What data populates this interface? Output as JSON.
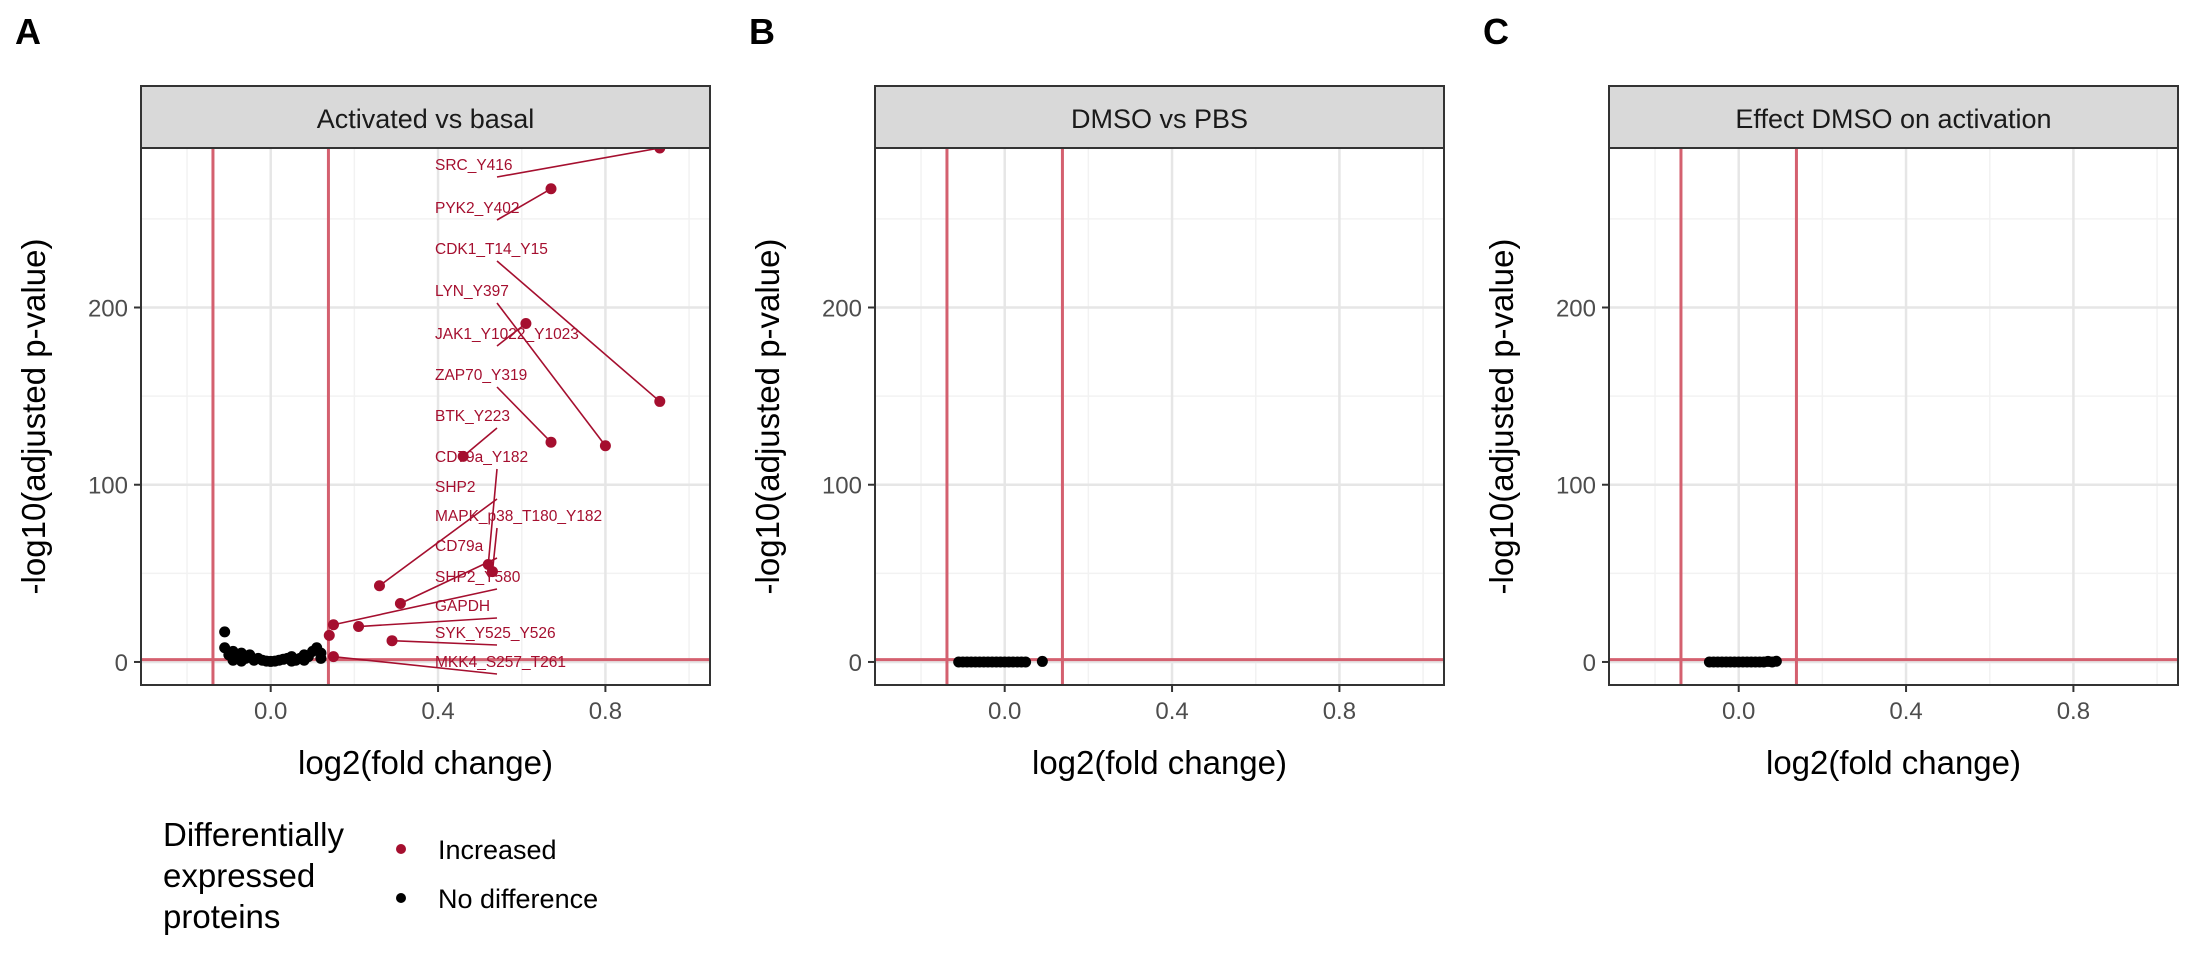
{
  "colors": {
    "increased": "#a50f2f",
    "no_difference": "#000000",
    "threshold": "#d4606f",
    "grid_major": "#e6e6e6",
    "grid_minor": "#f2f2f2",
    "strip_fill": "#d9d9d9",
    "panel_border": "#333333"
  },
  "legend": {
    "title_lines": [
      "Differentially",
      "expressed",
      "proteins"
    ],
    "items": [
      {
        "label": "Increased",
        "color": "#a50f2f"
      },
      {
        "label": "No difference",
        "color": "#000000"
      }
    ]
  },
  "chart_data": [
    {
      "type": "scatter",
      "panel_letter": "A",
      "title": "Activated vs basal",
      "xlabel": "log2(fold change)",
      "ylabel": "-log10(adjusted p-value)",
      "xlim": [
        -0.31,
        1.05
      ],
      "ylim": [
        -13,
        290
      ],
      "xticks": [
        0.0,
        0.4,
        0.8
      ],
      "xtick_labels": [
        "0.0",
        "0.4",
        "0.8"
      ],
      "yticks": [
        0,
        100,
        200
      ],
      "ytick_labels": [
        "0",
        "100",
        "200"
      ],
      "thresholds": {
        "x": [
          -0.138,
          0.138
        ],
        "y": 1.3
      },
      "grid": true,
      "series": [
        {
          "name": "Increased",
          "points": [
            {
              "x": 0.93,
              "y": 290,
              "label": "SRC_Y416"
            },
            {
              "x": 0.67,
              "y": 267,
              "label": "PYK2_Y402"
            },
            {
              "x": 0.93,
              "y": 147,
              "label": "CDK1_T14_Y15"
            },
            {
              "x": 0.8,
              "y": 122,
              "label": "LYN_Y397"
            },
            {
              "x": 0.61,
              "y": 191,
              "label": "JAK1_Y1022_Y1023"
            },
            {
              "x": 0.67,
              "y": 124,
              "label": "ZAP70_Y319"
            },
            {
              "x": 0.46,
              "y": 116,
              "label": "BTK_Y223"
            },
            {
              "x": 0.52,
              "y": 55,
              "label": "CD79a_Y182"
            },
            {
              "x": 0.26,
              "y": 43,
              "label": "SHP2"
            },
            {
              "x": 0.53,
              "y": 51,
              "label": "MAPK_p38_T180_Y182"
            },
            {
              "x": 0.31,
              "y": 33,
              "label": "CD79a"
            },
            {
              "x": 0.15,
              "y": 21,
              "label": "SHP2_Y580"
            },
            {
              "x": 0.21,
              "y": 20,
              "label": "GAPDH"
            },
            {
              "x": 0.29,
              "y": 12,
              "label": "SYK_Y525_Y526"
            },
            {
              "x": 0.15,
              "y": 3,
              "label": "MKK4_S257_T261"
            },
            {
              "x": 0.14,
              "y": 15,
              "label": ""
            }
          ]
        },
        {
          "name": "No difference",
          "points": [
            {
              "x": -0.11,
              "y": 17
            },
            {
              "x": -0.11,
              "y": 8
            },
            {
              "x": -0.1,
              "y": 4
            },
            {
              "x": -0.09,
              "y": 6
            },
            {
              "x": -0.08,
              "y": 3
            },
            {
              "x": -0.07,
              "y": 5
            },
            {
              "x": -0.06,
              "y": 2
            },
            {
              "x": -0.05,
              "y": 4
            },
            {
              "x": -0.04,
              "y": 1
            },
            {
              "x": -0.03,
              "y": 2
            },
            {
              "x": -0.02,
              "y": 1
            },
            {
              "x": -0.01,
              "y": 0.5
            },
            {
              "x": 0.0,
              "y": 0.3
            },
            {
              "x": 0.01,
              "y": 0.5
            },
            {
              "x": 0.02,
              "y": 1
            },
            {
              "x": 0.03,
              "y": 1.5
            },
            {
              "x": 0.04,
              "y": 2
            },
            {
              "x": 0.05,
              "y": 3
            },
            {
              "x": 0.06,
              "y": 1
            },
            {
              "x": 0.07,
              "y": 2
            },
            {
              "x": 0.08,
              "y": 4
            },
            {
              "x": 0.09,
              "y": 3
            },
            {
              "x": 0.1,
              "y": 6
            },
            {
              "x": 0.11,
              "y": 8
            },
            {
              "x": 0.12,
              "y": 2
            },
            {
              "x": -0.09,
              "y": 1
            },
            {
              "x": -0.07,
              "y": 0.5
            },
            {
              "x": 0.05,
              "y": 0.5
            },
            {
              "x": 0.08,
              "y": 1
            },
            {
              "x": 0.12,
              "y": 5
            }
          ]
        }
      ]
    },
    {
      "type": "scatter",
      "panel_letter": "B",
      "title": "DMSO vs PBS",
      "xlabel": "log2(fold change)",
      "ylabel": "-log10(adjusted p-value)",
      "xlim": [
        -0.31,
        1.05
      ],
      "ylim": [
        -13,
        290
      ],
      "xticks": [
        0.0,
        0.4,
        0.8
      ],
      "xtick_labels": [
        "0.0",
        "0.4",
        "0.8"
      ],
      "yticks": [
        0,
        100,
        200
      ],
      "ytick_labels": [
        "0",
        "100",
        "200"
      ],
      "thresholds": {
        "x": [
          -0.138,
          0.138
        ],
        "y": 1.3
      },
      "grid": true,
      "series": [
        {
          "name": "No difference",
          "points": [
            {
              "x": -0.11,
              "y": 0
            },
            {
              "x": -0.1,
              "y": 0
            },
            {
              "x": -0.09,
              "y": 0
            },
            {
              "x": -0.08,
              "y": 0
            },
            {
              "x": -0.07,
              "y": 0
            },
            {
              "x": -0.06,
              "y": 0
            },
            {
              "x": -0.05,
              "y": 0
            },
            {
              "x": -0.04,
              "y": 0
            },
            {
              "x": -0.03,
              "y": 0
            },
            {
              "x": -0.02,
              "y": 0
            },
            {
              "x": -0.01,
              "y": 0
            },
            {
              "x": 0.0,
              "y": 0
            },
            {
              "x": 0.01,
              "y": 0
            },
            {
              "x": 0.02,
              "y": 0
            },
            {
              "x": 0.03,
              "y": 0
            },
            {
              "x": 0.04,
              "y": 0
            },
            {
              "x": 0.05,
              "y": 0
            },
            {
              "x": 0.09,
              "y": 0.3
            }
          ]
        }
      ]
    },
    {
      "type": "scatter",
      "panel_letter": "C",
      "title": "Effect DMSO on activation",
      "xlabel": "log2(fold change)",
      "ylabel": "-log10(adjusted p-value)",
      "xlim": [
        -0.31,
        1.05
      ],
      "ylim": [
        -13,
        290
      ],
      "xticks": [
        0.0,
        0.4,
        0.8
      ],
      "xtick_labels": [
        "0.0",
        "0.4",
        "0.8"
      ],
      "yticks": [
        0,
        100,
        200
      ],
      "ytick_labels": [
        "0",
        "100",
        "200"
      ],
      "thresholds": {
        "x": [
          -0.138,
          0.138
        ],
        "y": 1.3
      },
      "grid": true,
      "series": [
        {
          "name": "No difference",
          "points": [
            {
              "x": -0.07,
              "y": 0
            },
            {
              "x": -0.06,
              "y": 0
            },
            {
              "x": -0.05,
              "y": 0
            },
            {
              "x": -0.04,
              "y": 0
            },
            {
              "x": -0.03,
              "y": 0
            },
            {
              "x": -0.02,
              "y": 0
            },
            {
              "x": -0.01,
              "y": 0
            },
            {
              "x": 0.0,
              "y": 0
            },
            {
              "x": 0.01,
              "y": 0
            },
            {
              "x": 0.02,
              "y": 0
            },
            {
              "x": 0.03,
              "y": 0
            },
            {
              "x": 0.04,
              "y": 0
            },
            {
              "x": 0.05,
              "y": 0
            },
            {
              "x": 0.06,
              "y": 0
            },
            {
              "x": 0.07,
              "y": 0.3
            },
            {
              "x": 0.08,
              "y": 0
            },
            {
              "x": 0.09,
              "y": 0.4
            }
          ]
        }
      ]
    }
  ]
}
